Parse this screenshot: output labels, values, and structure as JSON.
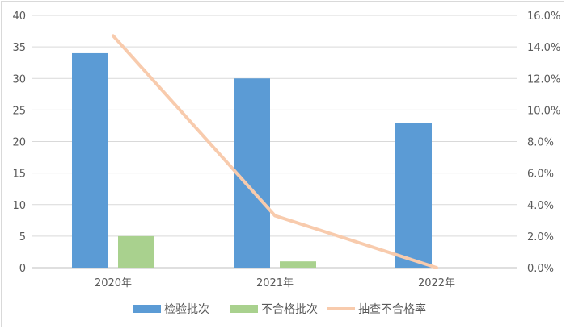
{
  "chart_data": {
    "type": "bar",
    "categories": [
      "2020年",
      "2021年",
      "2022年"
    ],
    "series": [
      {
        "name": "检验批次",
        "kind": "bar",
        "axis": "left",
        "color": "#5b9bd5",
        "values": [
          34,
          30,
          23
        ]
      },
      {
        "name": "不合格批次",
        "kind": "bar",
        "axis": "left",
        "color": "#a9d18e",
        "values": [
          5,
          1,
          0
        ]
      },
      {
        "name": "抽查不合格率",
        "kind": "line",
        "axis": "right",
        "color": "#f8cbad",
        "values": [
          0.147,
          0.033,
          0.0
        ]
      }
    ],
    "y_left": {
      "ylim": [
        0,
        40
      ],
      "ticks": [
        0,
        5,
        10,
        15,
        20,
        25,
        30,
        35,
        40
      ],
      "tick_labels": [
        "0",
        "5",
        "10",
        "15",
        "20",
        "25",
        "30",
        "35",
        "40"
      ]
    },
    "y_right": {
      "ylim": [
        0,
        0.16
      ],
      "ticks": [
        0,
        0.02,
        0.04,
        0.06,
        0.08,
        0.1,
        0.12,
        0.14,
        0.16
      ],
      "tick_labels": [
        "0.0%",
        "2.0%",
        "4.0%",
        "6.0%",
        "8.0%",
        "10.0%",
        "12.0%",
        "14.0%",
        "16.0%"
      ]
    },
    "grid": true,
    "legend_position": "bottom"
  }
}
